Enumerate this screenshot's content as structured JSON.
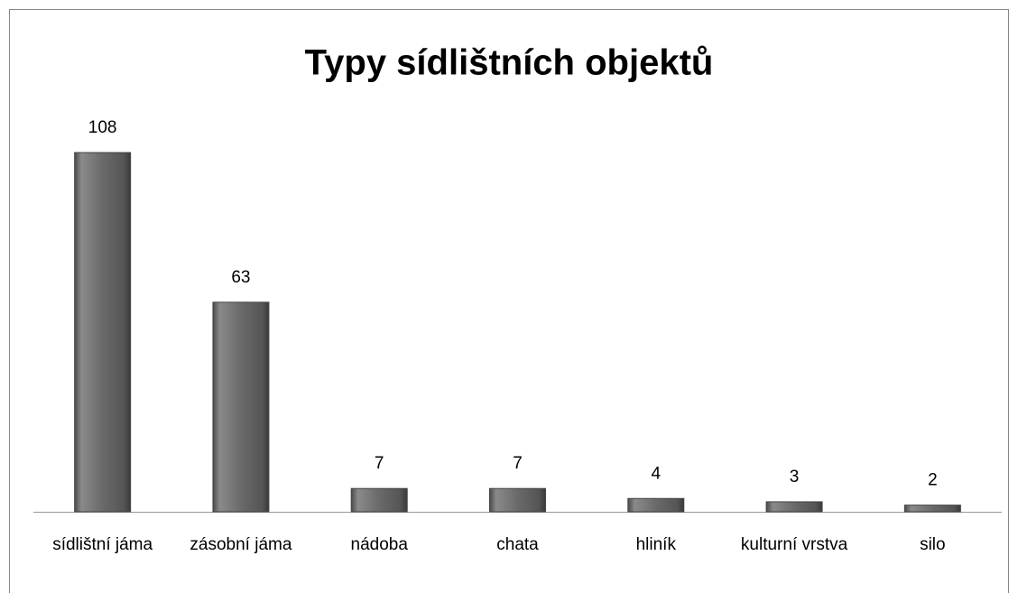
{
  "chart_data": {
    "type": "bar",
    "title": "Typy sídlištních objektů",
    "categories": [
      "sídlištní jáma",
      "zásobní jáma",
      "nádoba",
      "chata",
      "hliník",
      "kulturní vrstva",
      "silo"
    ],
    "values": [
      108,
      63,
      7,
      7,
      4,
      3,
      2
    ],
    "color": "#6e6e6e"
  }
}
